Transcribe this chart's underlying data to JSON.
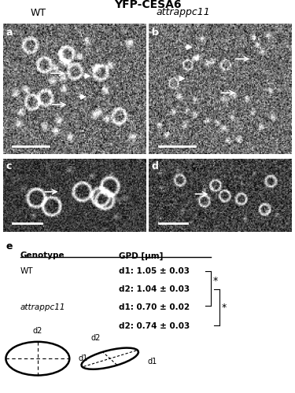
{
  "title": "YFP-CESA6",
  "title_fontsize": 10,
  "title_style": "bold",
  "wt_label": "WT",
  "mutant_label": "attrappc11",
  "panel_labels": [
    "a",
    "b",
    "c",
    "d",
    "e"
  ],
  "table_headers": [
    "Genotype",
    "GPD [μm]"
  ],
  "table_rows": [
    [
      "WT",
      "d1: 1.05 ± 0.03",
      "d2: 1.04 ± 0.03"
    ],
    [
      "attrappc11",
      "d1: 0.70 ± 0.02",
      "d2: 0.74 ± 0.03"
    ]
  ],
  "sig_marker": "*",
  "bg_color": "#ffffff",
  "panel_label_color": "white",
  "text_color": "black"
}
